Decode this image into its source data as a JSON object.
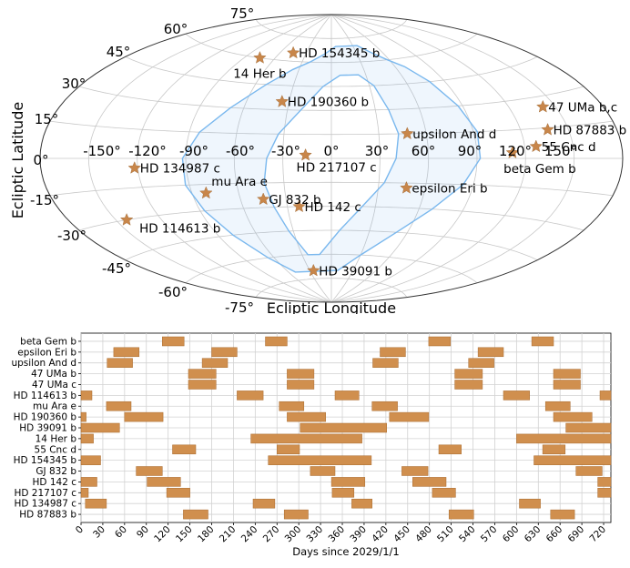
{
  "chart_data": [
    {
      "type": "scatter",
      "projection": "aitoff",
      "xlabel": "Ecliptic Longitude",
      "ylabel": "Ecliptic Latitude",
      "lon_ticks": [
        "-150°",
        "-120°",
        "-90°",
        "-60°",
        "-30°",
        "0°",
        "30°",
        "60°",
        "90°",
        "120°",
        "150°"
      ],
      "lat_ticks": [
        "75°",
        "60°",
        "45°",
        "30°",
        "15°",
        "0°",
        "-15°",
        "-30°",
        "-45°",
        "-60°",
        "-75°"
      ],
      "grid": true,
      "marker": "star",
      "marker_color": "#c8864a",
      "visibility_region_color": "#7ab8ee",
      "points": [
        {
          "name": "HD 154345 b",
          "lon": -45,
          "lat": 65
        },
        {
          "name": "14 Her b",
          "lon": -75,
          "lat": 60
        },
        {
          "name": "HD 190360 b",
          "lon": -35,
          "lat": 35
        },
        {
          "name": "upsilon And d",
          "lon": 48,
          "lat": 15
        },
        {
          "name": "47 UMa b,c",
          "lon": 142,
          "lat": 25
        },
        {
          "name": "HD 87883 b",
          "lon": 137,
          "lat": 14
        },
        {
          "name": "55 Cnc d",
          "lon": 127,
          "lat": 6
        },
        {
          "name": "beta Gem b",
          "lon": 112,
          "lat": 3
        },
        {
          "name": "HD 217107 c",
          "lon": -16,
          "lat": 2
        },
        {
          "name": "HD 134987 c",
          "lon": -122,
          "lat": -5
        },
        {
          "name": "mu Ara e",
          "lon": -81,
          "lat": -20
        },
        {
          "name": "GJ 832 b",
          "lon": -45,
          "lat": -25
        },
        {
          "name": "HD 114613 b",
          "lon": -143,
          "lat": -30
        },
        {
          "name": "epsilon Eri b",
          "lon": 48,
          "lat": -18
        },
        {
          "name": "HD 142 c",
          "lon": -22,
          "lat": -30
        },
        {
          "name": "HD 39091 b",
          "lon": -25,
          "lat": -70
        }
      ]
    },
    {
      "type": "timeline",
      "xlabel": "Days since 2029/1/1",
      "xlim": [
        0,
        730
      ],
      "xticks": [
        0,
        30,
        60,
        90,
        120,
        150,
        180,
        210,
        240,
        270,
        300,
        330,
        360,
        390,
        420,
        450,
        480,
        510,
        540,
        570,
        600,
        630,
        660,
        690,
        720
      ],
      "bar_color": "#d08f4e",
      "rows": [
        {
          "name": "beta Gem b",
          "intervals": [
            [
              112,
              142
            ],
            [
              254,
              284
            ],
            [
              479,
              509
            ],
            [
              621,
              651
            ]
          ]
        },
        {
          "name": "epsilon Eri b",
          "intervals": [
            [
              45,
              80
            ],
            [
              180,
              215
            ],
            [
              412,
              447
            ],
            [
              547,
              582
            ]
          ]
        },
        {
          "name": "upsilon And d",
          "intervals": [
            [
              36,
              71
            ],
            [
              167,
              202
            ],
            [
              402,
              437
            ],
            [
              534,
              569
            ]
          ]
        },
        {
          "name": "47 UMa b",
          "intervals": [
            [
              148,
              186
            ],
            [
              284,
              321
            ],
            [
              515,
              553
            ],
            [
              651,
              688
            ]
          ]
        },
        {
          "name": "47 UMa c",
          "intervals": [
            [
              148,
              186
            ],
            [
              284,
              321
            ],
            [
              515,
              553
            ],
            [
              651,
              688
            ]
          ]
        },
        {
          "name": "HD 114613 b",
          "intervals": [
            [
              0,
              15
            ],
            [
              215,
              251
            ],
            [
              350,
              383
            ],
            [
              582,
              618
            ],
            [
              715,
              730
            ]
          ]
        },
        {
          "name": "mu Ara e",
          "intervals": [
            [
              35,
              69
            ],
            [
              273,
              307
            ],
            [
              401,
              436
            ],
            [
              640,
              674
            ]
          ]
        },
        {
          "name": "HD 190360 b",
          "intervals": [
            [
              0,
              7
            ],
            [
              60,
              113
            ],
            [
              284,
              337
            ],
            [
              425,
              479
            ],
            [
              651,
              704
            ]
          ]
        },
        {
          "name": "HD 39091 b",
          "intervals": [
            [
              0,
              53
            ],
            [
              302,
              421
            ],
            [
              668,
              730
            ]
          ]
        },
        {
          "name": "14 Her b",
          "intervals": [
            [
              0,
              17
            ],
            [
              234,
              387
            ],
            [
              600,
              730
            ]
          ]
        },
        {
          "name": "55 Cnc d",
          "intervals": [
            [
              126,
              158
            ],
            [
              270,
              301
            ],
            [
              493,
              524
            ],
            [
              636,
              667
            ]
          ]
        },
        {
          "name": "HD 154345 b",
          "intervals": [
            [
              0,
              27
            ],
            [
              258,
              400
            ],
            [
              624,
              730
            ]
          ]
        },
        {
          "name": "GJ 832 b",
          "intervals": [
            [
              76,
              112
            ],
            [
              316,
              350
            ],
            [
              442,
              478
            ],
            [
              682,
              718
            ]
          ]
        },
        {
          "name": "HD 142 c",
          "intervals": [
            [
              0,
              22
            ],
            [
              91,
              137
            ],
            [
              345,
              391
            ],
            [
              457,
              503
            ],
            [
              712,
              730
            ]
          ]
        },
        {
          "name": "HD 217107 c",
          "intervals": [
            [
              0,
              10
            ],
            [
              118,
              150
            ],
            [
              346,
              376
            ],
            [
              484,
              516
            ],
            [
              712,
              730
            ]
          ]
        },
        {
          "name": "HD 134987 c",
          "intervals": [
            [
              6,
              35
            ],
            [
              237,
              267
            ],
            [
              373,
              401
            ],
            [
              604,
              633
            ]
          ]
        },
        {
          "name": "HD 87883 b",
          "intervals": [
            [
              141,
              175
            ],
            [
              280,
              313
            ],
            [
              507,
              541
            ],
            [
              647,
              680
            ]
          ]
        }
      ]
    }
  ]
}
